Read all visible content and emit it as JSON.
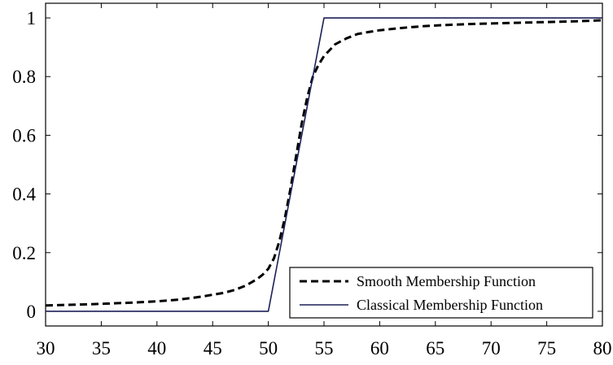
{
  "chart_data": {
    "type": "line",
    "title": "",
    "xlabel": "",
    "ylabel": "",
    "xlim": [
      30,
      80
    ],
    "ylim": [
      -0.05,
      1.05
    ],
    "grid": false,
    "legend_position": "bottom-right",
    "x_ticks": [
      30,
      35,
      40,
      45,
      50,
      55,
      60,
      65,
      70,
      75,
      80
    ],
    "x_tick_labels": [
      "30",
      "35",
      "40",
      "45",
      "50",
      "55",
      "60",
      "65",
      "70",
      "75",
      "80"
    ],
    "y_ticks": [
      0,
      0.2,
      0.4,
      0.6,
      0.8,
      1
    ],
    "y_tick_labels": [
      "0",
      "0.2",
      "0.4",
      "0.6",
      "0.8",
      "1"
    ],
    "series": [
      {
        "name": "Smooth Membership Function",
        "style": "dashed",
        "color": "#000000",
        "x": [
          30,
          32,
          34,
          36,
          38,
          40,
          42,
          44,
          46,
          47,
          48,
          49,
          49.5,
          50,
          50.5,
          51,
          51.5,
          52,
          52.5,
          53,
          53.5,
          54,
          54.5,
          55,
          56,
          57,
          58,
          59,
          60,
          62,
          64,
          66,
          68,
          70,
          72,
          74,
          76,
          78,
          80
        ],
        "y": [
          0.02,
          0.022,
          0.024,
          0.027,
          0.03,
          0.034,
          0.04,
          0.05,
          0.063,
          0.073,
          0.088,
          0.11,
          0.125,
          0.145,
          0.18,
          0.24,
          0.32,
          0.42,
          0.53,
          0.64,
          0.73,
          0.8,
          0.84,
          0.87,
          0.91,
          0.93,
          0.945,
          0.952,
          0.958,
          0.966,
          0.972,
          0.976,
          0.979,
          0.981,
          0.983,
          0.985,
          0.987,
          0.989,
          0.992
        ]
      },
      {
        "name": "Classical Membership Function",
        "style": "solid",
        "color": "#1c2157",
        "x": [
          30,
          50,
          55,
          80
        ],
        "y": [
          0,
          0,
          1,
          1
        ]
      }
    ]
  }
}
